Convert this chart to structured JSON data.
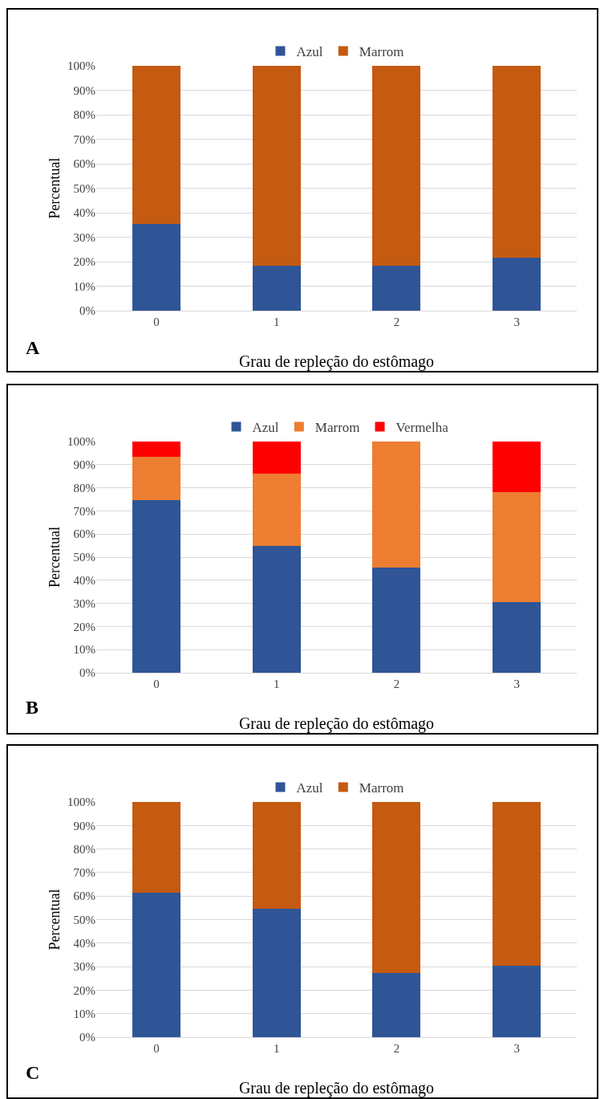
{
  "chart_data": [
    {
      "type": "bar",
      "stacked": true,
      "categories": [
        "0",
        "1",
        "2",
        "3"
      ],
      "xlabel": "Grau de repleção do estômago",
      "ylabel": "Percentual",
      "annotations": [
        "A"
      ],
      "legend": "top",
      "grid": "y",
      "ylim": [
        0,
        100
      ],
      "yticks": [
        {
          "value": 0,
          "label": "0%"
        },
        {
          "value": 10,
          "label": "10%"
        },
        {
          "value": 20,
          "label": "20%"
        },
        {
          "value": 30,
          "label": "30%"
        },
        {
          "value": 40,
          "label": "40%"
        },
        {
          "value": 50,
          "label": "50%"
        },
        {
          "value": 60,
          "label": "60%"
        },
        {
          "value": 70,
          "label": "70%"
        },
        {
          "value": 80,
          "label": "80%"
        },
        {
          "value": 90,
          "label": "90%"
        },
        {
          "value": 100,
          "label": "100%"
        }
      ],
      "series": [
        {
          "name": "Azul",
          "color": "#2f5597",
          "values": [
            35.5,
            18.3,
            18.3,
            21.7
          ]
        },
        {
          "name": "Marrom",
          "color": "#c55a11",
          "values": [
            64.5,
            81.7,
            81.7,
            78.3
          ]
        }
      ]
    },
    {
      "type": "bar",
      "stacked": true,
      "categories": [
        "0",
        "1",
        "2",
        "3"
      ],
      "xlabel": "Grau de repleção do estômago",
      "ylabel": "Percentual",
      "annotations": [
        "B"
      ],
      "legend": "top",
      "grid": "y",
      "ylim": [
        0,
        100
      ],
      "yticks": [
        {
          "value": 0,
          "label": "0%"
        },
        {
          "value": 10,
          "label": "10%"
        },
        {
          "value": 20,
          "label": "20%"
        },
        {
          "value": 30,
          "label": "30%"
        },
        {
          "value": 40,
          "label": "40%"
        },
        {
          "value": 50,
          "label": "50%"
        },
        {
          "value": 60,
          "label": "60%"
        },
        {
          "value": 70,
          "label": "70%"
        },
        {
          "value": 80,
          "label": "80%"
        },
        {
          "value": 90,
          "label": "90%"
        },
        {
          "value": 100,
          "label": "100%"
        }
      ],
      "series": [
        {
          "name": "Azul",
          "color": "#2f5597",
          "values": [
            74.5,
            54.7,
            45.5,
            30.5
          ]
        },
        {
          "name": "Marrom",
          "color": "#ed7d31",
          "values": [
            19,
            31.5,
            54.5,
            47.5
          ]
        },
        {
          "name": "Vermelha",
          "color": "#ff0000",
          "values": [
            6.5,
            13.8,
            null,
            22
          ]
        }
      ]
    },
    {
      "type": "bar",
      "stacked": true,
      "categories": [
        "0",
        "1",
        "2",
        "3"
      ],
      "xlabel": "Grau de repleção do estômago",
      "ylabel": "Percentual",
      "annotations": [
        "C"
      ],
      "legend": "top",
      "grid": "y",
      "ylim": [
        0,
        100
      ],
      "yticks": [
        {
          "value": 0,
          "label": "0%"
        },
        {
          "value": 10,
          "label": "10%"
        },
        {
          "value": 20,
          "label": "20%"
        },
        {
          "value": 30,
          "label": "30%"
        },
        {
          "value": 40,
          "label": "40%"
        },
        {
          "value": 50,
          "label": "50%"
        },
        {
          "value": 60,
          "label": "60%"
        },
        {
          "value": 70,
          "label": "70%"
        },
        {
          "value": 80,
          "label": "80%"
        },
        {
          "value": 90,
          "label": "90%"
        },
        {
          "value": 100,
          "label": "100%"
        }
      ],
      "series": [
        {
          "name": "Azul",
          "color": "#2f5597",
          "values": [
            61.5,
            54.5,
            27.3,
            30.5
          ]
        },
        {
          "name": "Marrom",
          "color": "#c55a11",
          "values": [
            38.5,
            45.5,
            72.7,
            69.5
          ]
        }
      ]
    }
  ]
}
